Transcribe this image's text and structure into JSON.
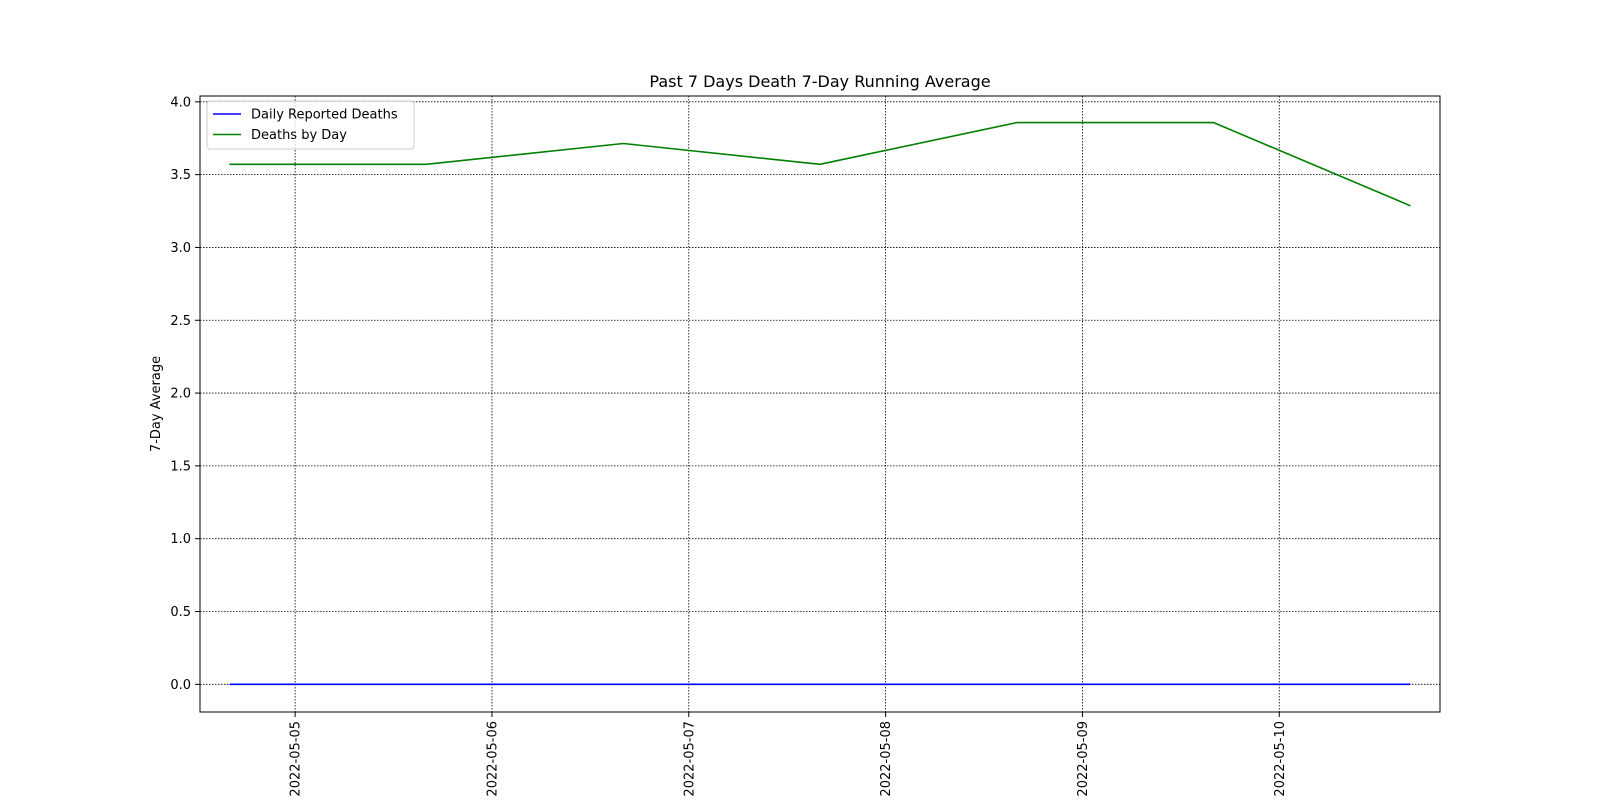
{
  "chart_data": {
    "type": "line",
    "title": "Past 7 Days Death 7-Day Running Average",
    "xlabel": "",
    "ylabel": "7-Day Average",
    "x": [
      "2022-05-04 16:00",
      "2022-05-05 16:00",
      "2022-05-06 16:00",
      "2022-05-07 16:00",
      "2022-05-08 16:00",
      "2022-05-09 16:00",
      "2022-05-10 16:00"
    ],
    "x_range": [
      "2022-05-04 12:24",
      "2022-05-10 19:36"
    ],
    "x_ticks": [
      "2022-05-05",
      "2022-05-06",
      "2022-05-07",
      "2022-05-08",
      "2022-05-09",
      "2022-05-10"
    ],
    "ylim": [
      -0.19,
      4.04
    ],
    "y_ticks": [
      0.0,
      0.5,
      1.0,
      1.5,
      2.0,
      2.5,
      3.0,
      3.5,
      4.0
    ],
    "grid": true,
    "legend_position": "upper-left",
    "series": [
      {
        "name": "Daily Reported Deaths",
        "color": "#0000ff",
        "values": [
          0,
          0,
          0,
          0,
          0,
          0,
          0
        ]
      },
      {
        "name": "Deaths by Day",
        "color": "#008000",
        "values": [
          3.571,
          3.571,
          3.714,
          3.571,
          3.857,
          3.857,
          3.286
        ]
      }
    ]
  }
}
